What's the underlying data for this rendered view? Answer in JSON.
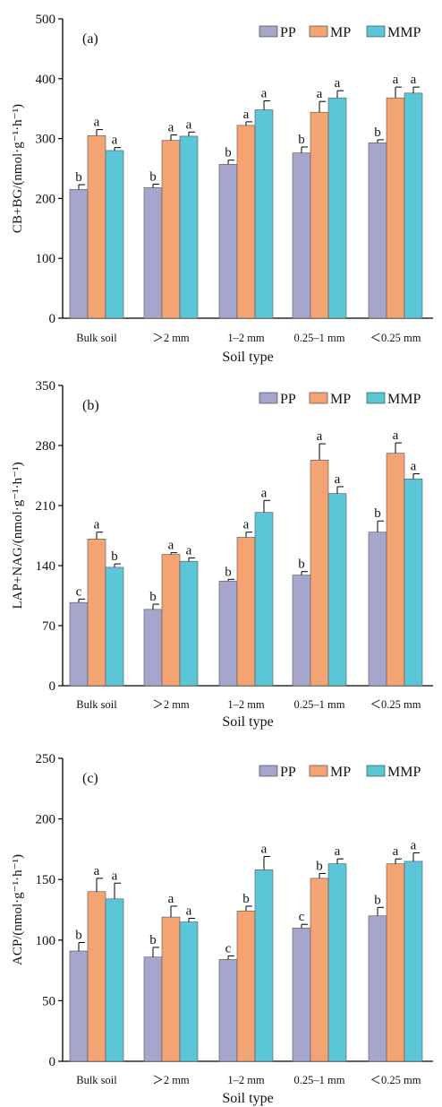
{
  "colors": {
    "PP": "#a6a6cc",
    "MP": "#f4a373",
    "MMP": "#5cc6d9"
  },
  "chart_data": [
    {
      "type": "bar",
      "panel_label": "(a)",
      "ylabel": "CB+BG/(nmol·g⁻¹·h⁻¹)",
      "xlabel": "Soil type",
      "categories": [
        "Bulk soil",
        "＞2 mm",
        "1–2 mm",
        "0.25–1 mm",
        "＜0.25 mm"
      ],
      "ylim": [
        0,
        500
      ],
      "yticks": [
        0,
        100,
        200,
        300,
        400,
        500
      ],
      "legend": "top-right",
      "series": [
        {
          "name": "PP",
          "values": [
            215,
            218,
            257,
            276,
            293
          ],
          "errors": [
            8,
            6,
            7,
            10,
            5
          ],
          "letters": [
            "b",
            "b",
            "b",
            "b",
            "b"
          ]
        },
        {
          "name": "MP",
          "values": [
            305,
            297,
            322,
            344,
            368
          ],
          "errors": [
            10,
            9,
            6,
            18,
            18
          ],
          "letters": [
            "a",
            "a",
            "a",
            "a",
            "a"
          ]
        },
        {
          "name": "MMP",
          "values": [
            280,
            304,
            348,
            368,
            376
          ],
          "errors": [
            5,
            7,
            15,
            12,
            10
          ],
          "letters": [
            "a",
            "a",
            "a",
            "a",
            "a"
          ]
        }
      ]
    },
    {
      "type": "bar",
      "panel_label": "(b)",
      "ylabel": "LAP+NAG/(nmol·g⁻¹·h⁻¹)",
      "xlabel": "Soil type",
      "categories": [
        "Bulk soil",
        "＞2 mm",
        "1–2 mm",
        "0.25–1 mm",
        "＜0.25 mm"
      ],
      "ylim": [
        0,
        350
      ],
      "yticks": [
        0,
        70,
        140,
        210,
        280,
        350
      ],
      "legend": "top-right",
      "series": [
        {
          "name": "PP",
          "values": [
            97,
            89,
            122,
            129,
            179
          ],
          "errors": [
            4,
            6,
            2,
            4,
            13
          ],
          "letters": [
            "c",
            "b",
            "b",
            "b",
            "b"
          ]
        },
        {
          "name": "MP",
          "values": [
            171,
            153,
            173,
            263,
            271
          ],
          "errors": [
            8,
            2,
            6,
            19,
            12
          ],
          "letters": [
            "a",
            "a",
            "a",
            "a",
            "a"
          ]
        },
        {
          "name": "MMP",
          "values": [
            138,
            145,
            202,
            224,
            241
          ],
          "errors": [
            4,
            4,
            14,
            8,
            6
          ],
          "letters": [
            "b",
            "a",
            "a",
            "a",
            "a"
          ]
        }
      ]
    },
    {
      "type": "bar",
      "panel_label": "(c)",
      "ylabel": "ACP/(nmol·g⁻¹·h⁻¹)",
      "xlabel": "Soil type",
      "categories": [
        "Bulk soil",
        "＞2 mm",
        "1–2 mm",
        "0.25–1 mm",
        "＜0.25 mm"
      ],
      "ylim": [
        0,
        250
      ],
      "yticks": [
        0,
        50,
        100,
        150,
        200,
        250
      ],
      "legend": "top-right",
      "series": [
        {
          "name": "PP",
          "values": [
            91,
            86,
            84,
            110,
            120
          ],
          "errors": [
            7,
            8,
            3,
            3,
            7
          ],
          "letters": [
            "b",
            "b",
            "c",
            "c",
            "b"
          ]
        },
        {
          "name": "MP",
          "values": [
            140,
            119,
            124,
            151,
            163
          ],
          "errors": [
            11,
            9,
            4,
            4,
            4
          ],
          "letters": [
            "a",
            "a",
            "b",
            "b",
            "a"
          ]
        },
        {
          "name": "MMP",
          "values": [
            134,
            115,
            158,
            163,
            165
          ],
          "errors": [
            13,
            3,
            11,
            4,
            7
          ],
          "letters": [
            "a",
            "a",
            "a",
            "a",
            "a"
          ]
        }
      ]
    }
  ]
}
